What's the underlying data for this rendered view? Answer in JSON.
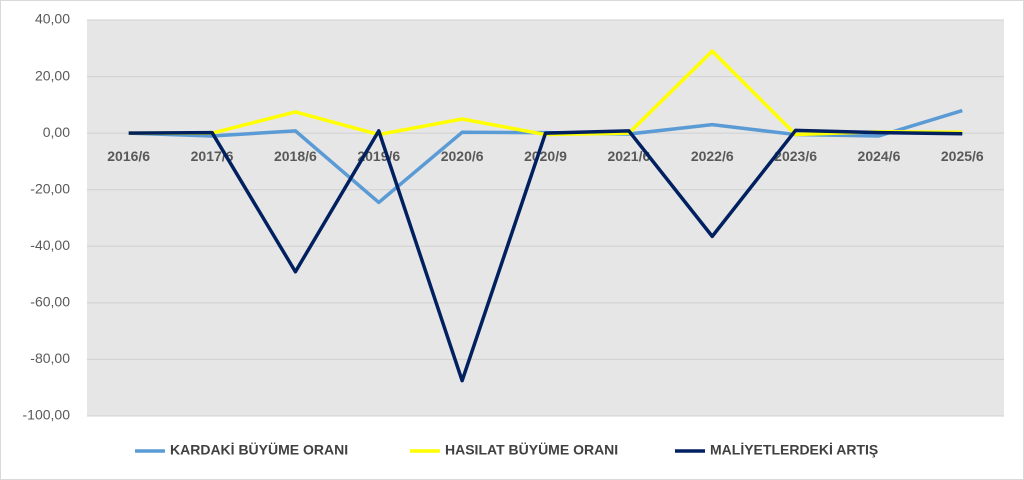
{
  "chart_data": {
    "type": "line",
    "categories": [
      "2016/6",
      "2017/6",
      "2018/6",
      "2019/6",
      "2020/6",
      "2020/9",
      "2021/6",
      "2022/6",
      "2023/6",
      "2024/6",
      "2025/6"
    ],
    "series": [
      {
        "name": "KARDAKİ BÜYÜME ORANI",
        "color": "#5b9bd5",
        "values": [
          0,
          -1,
          0.8,
          -24.5,
          0.3,
          0.2,
          -0.3,
          3,
          -0.5,
          -1,
          8
        ]
      },
      {
        "name": "HASILAT BÜYÜME ORANI",
        "color": "#ffff00",
        "values": [
          0,
          0,
          7.5,
          -0.5,
          5,
          -0.5,
          0,
          29,
          -0.5,
          0.5,
          0.3
        ]
      },
      {
        "name": "MALİYETLERDEKİ ARTIŞ",
        "color": "#002060",
        "values": [
          0,
          0.2,
          -49,
          0.8,
          -87.5,
          0,
          0.8,
          -36.5,
          1,
          0.2,
          -0.2
        ]
      }
    ],
    "ylim": [
      -100,
      40
    ],
    "yticks": [
      {
        "value": -100,
        "label": "-100,00"
      },
      {
        "value": -80,
        "label": "-80,00"
      },
      {
        "value": -60,
        "label": "-60,00"
      },
      {
        "value": -40,
        "label": "-40,00"
      },
      {
        "value": -20,
        "label": "-20,00"
      },
      {
        "value": 0,
        "label": "0,00"
      },
      {
        "value": 20,
        "label": "20,00"
      },
      {
        "value": 40,
        "label": "40,00"
      }
    ],
    "grid": true,
    "legend": "bottom"
  }
}
